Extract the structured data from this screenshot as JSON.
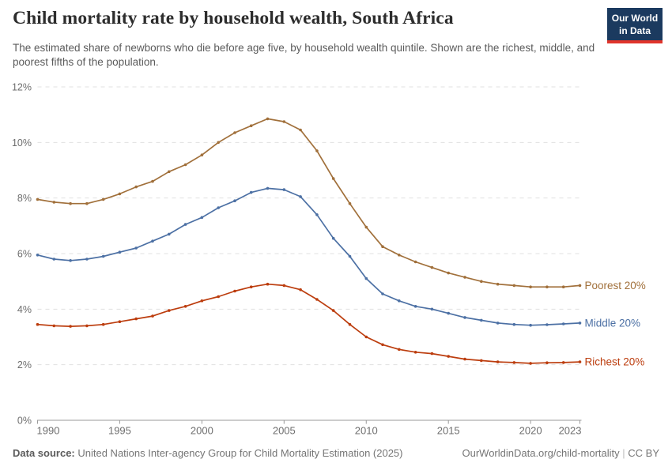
{
  "header": {
    "title": "Child mortality rate by household wealth, South Africa",
    "logo": {
      "line1": "Our World",
      "line2": "in Data",
      "bg_color": "#1B3A5F",
      "accent_color": "#E0342B"
    }
  },
  "subtitle": "The estimated share of newborns who die before age five, by household wealth quintile. Shown are the richest, middle, and poorest fifths of the population.",
  "footer": {
    "datasource_label": "Data source:",
    "datasource_text": " United Nations Inter-agency Group for Child Mortality Estimation (2025)",
    "link_text": "OurWorldinData.org/child-mortality",
    "separator": " | ",
    "license": "CC BY"
  },
  "colors": {
    "grid": "#e0e0e0",
    "axis_text": "#6e6e6e",
    "title_text": "#2d2d2d",
    "subtitle_text": "#5b5b5b"
  },
  "chart_data": {
    "type": "line",
    "title": "Child mortality rate by household wealth, South Africa",
    "xlabel": "",
    "ylabel": "",
    "xlim": [
      1990,
      2023
    ],
    "ylim": [
      0,
      12
    ],
    "yticks": [
      0,
      2,
      4,
      6,
      8,
      10,
      12
    ],
    "ytick_suffix": "%",
    "xticks": [
      1990,
      1995,
      2000,
      2005,
      2010,
      2015,
      2020,
      2023
    ],
    "grid": "horizontal-dashed",
    "legend_position": "right-edge-inline-labels",
    "markers": "point-per-year",
    "x": [
      1990,
      1991,
      1992,
      1993,
      1994,
      1995,
      1996,
      1997,
      1998,
      1999,
      2000,
      2001,
      2002,
      2003,
      2004,
      2005,
      2006,
      2007,
      2008,
      2009,
      2010,
      2011,
      2012,
      2013,
      2014,
      2015,
      2016,
      2017,
      2018,
      2019,
      2020,
      2021,
      2022,
      2023
    ],
    "series": [
      {
        "id": "poorest",
        "name": "Poorest 20%",
        "color": "#A1703B",
        "values": [
          7.95,
          7.85,
          7.8,
          7.8,
          7.95,
          8.15,
          8.4,
          8.6,
          8.95,
          9.2,
          9.55,
          10.0,
          10.35,
          10.6,
          10.85,
          10.75,
          10.45,
          9.7,
          8.7,
          7.8,
          6.95,
          6.25,
          5.95,
          5.7,
          5.5,
          5.3,
          5.15,
          5.0,
          4.9,
          4.85,
          4.8,
          4.8,
          4.8,
          4.85
        ]
      },
      {
        "id": "middle",
        "name": "Middle 20%",
        "color": "#4C70A4",
        "values": [
          5.95,
          5.8,
          5.75,
          5.8,
          5.9,
          6.05,
          6.2,
          6.45,
          6.7,
          7.05,
          7.3,
          7.65,
          7.9,
          8.2,
          8.35,
          8.3,
          8.05,
          7.4,
          6.55,
          5.9,
          5.1,
          4.55,
          4.3,
          4.1,
          4.0,
          3.85,
          3.7,
          3.6,
          3.5,
          3.45,
          3.42,
          3.44,
          3.47,
          3.5
        ]
      },
      {
        "id": "richest",
        "name": "Richest 20%",
        "color": "#BC3D0E",
        "values": [
          3.45,
          3.4,
          3.38,
          3.4,
          3.45,
          3.55,
          3.65,
          3.75,
          3.95,
          4.1,
          4.3,
          4.45,
          4.65,
          4.8,
          4.9,
          4.85,
          4.7,
          4.35,
          3.95,
          3.45,
          3.0,
          2.72,
          2.55,
          2.45,
          2.4,
          2.3,
          2.2,
          2.15,
          2.1,
          2.08,
          2.05,
          2.07,
          2.08,
          2.1
        ]
      }
    ]
  }
}
